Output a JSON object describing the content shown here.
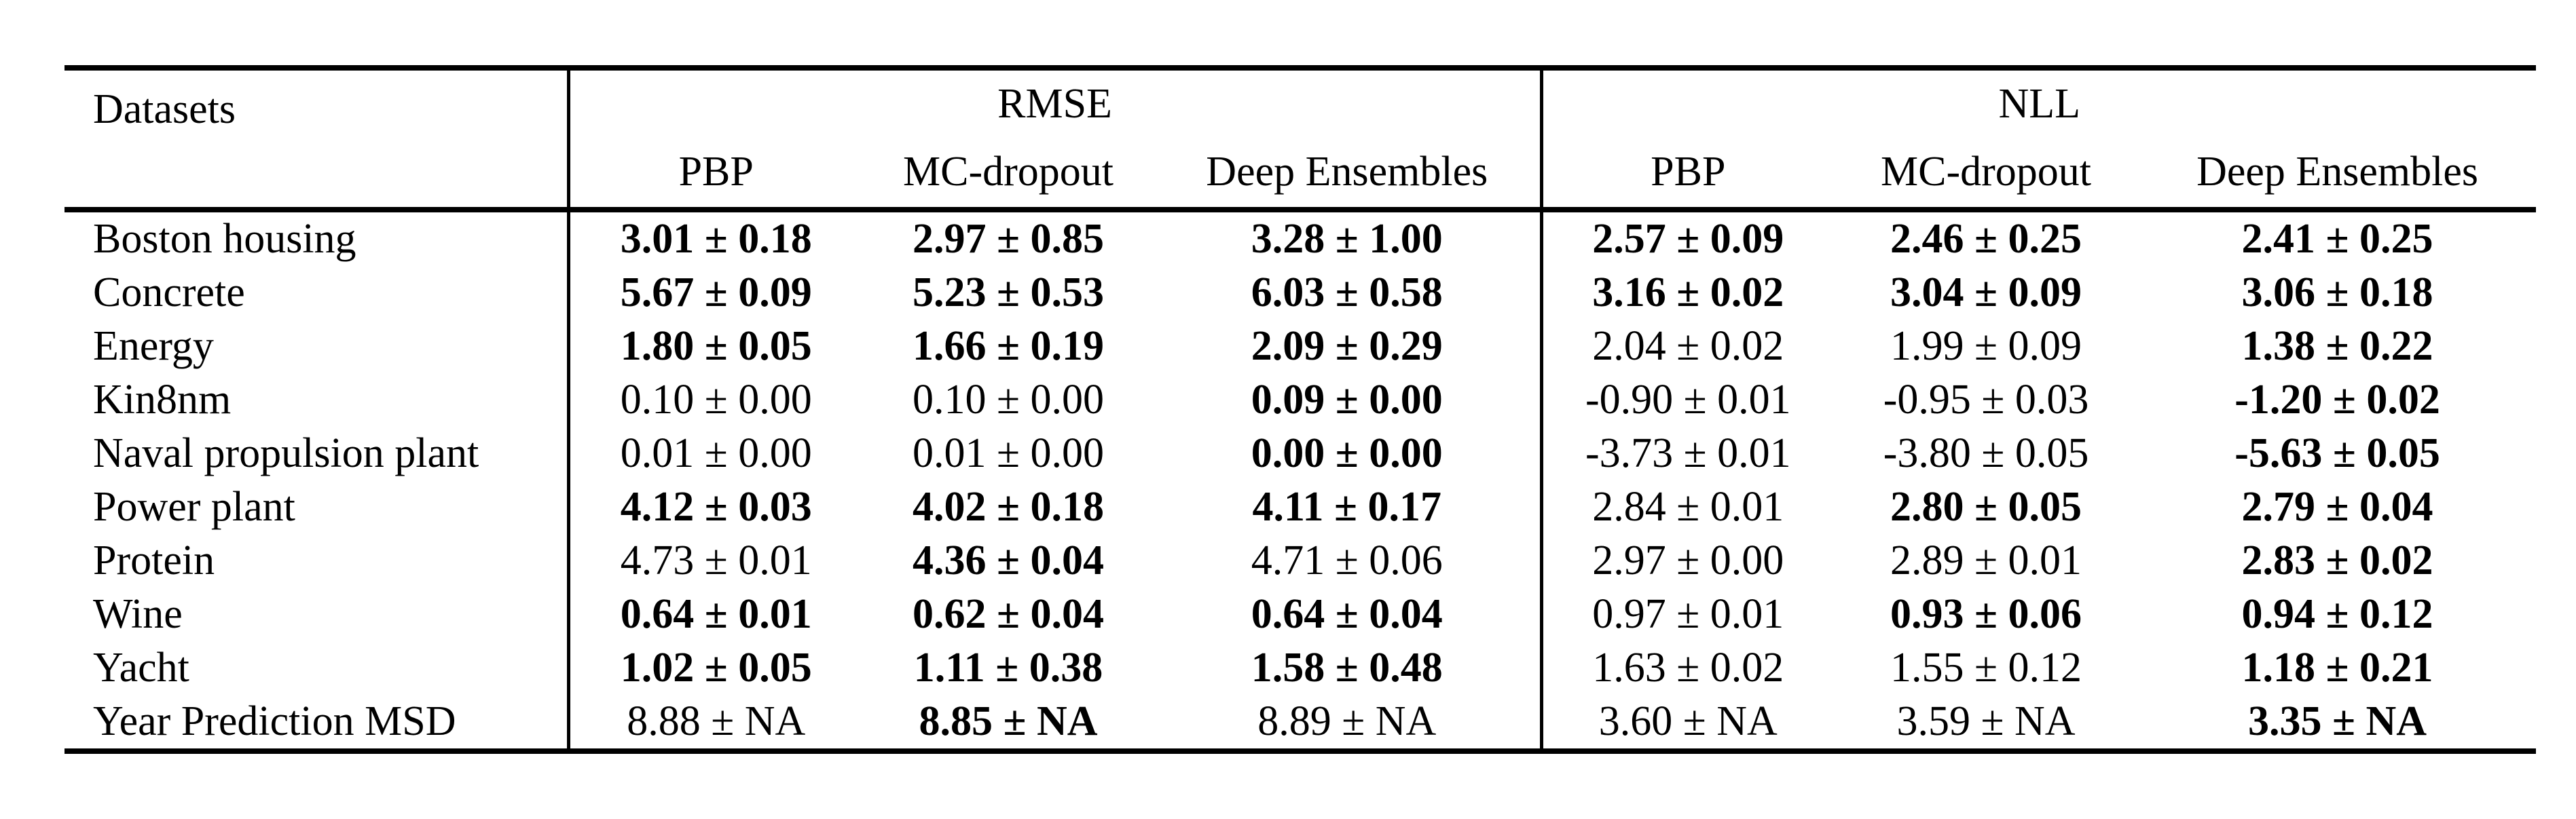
{
  "colors": {
    "text": "#000000",
    "background": "#ffffff",
    "rule": "#000000"
  },
  "header": {
    "datasets": "Datasets",
    "groups": [
      {
        "label": "RMSE",
        "methods": [
          "PBP",
          "MC-dropout",
          "Deep Ensembles"
        ]
      },
      {
        "label": "NLL",
        "methods": [
          "PBP",
          "MC-dropout",
          "Deep Ensembles"
        ]
      }
    ]
  },
  "rows": [
    {
      "dataset": "Boston housing",
      "rmse": [
        {
          "value": "3.01 ± 0.18",
          "bold": true
        },
        {
          "value": "2.97 ± 0.85",
          "bold": true
        },
        {
          "value": "3.28 ± 1.00",
          "bold": true
        }
      ],
      "nll": [
        {
          "value": "2.57 ± 0.09",
          "bold": true
        },
        {
          "value": "2.46 ± 0.25",
          "bold": true
        },
        {
          "value": "2.41 ± 0.25",
          "bold": true
        }
      ]
    },
    {
      "dataset": "Concrete",
      "rmse": [
        {
          "value": "5.67 ± 0.09",
          "bold": true
        },
        {
          "value": "5.23 ± 0.53",
          "bold": true
        },
        {
          "value": "6.03 ± 0.58",
          "bold": true
        }
      ],
      "nll": [
        {
          "value": "3.16 ± 0.02",
          "bold": true
        },
        {
          "value": "3.04 ± 0.09",
          "bold": true
        },
        {
          "value": "3.06 ± 0.18",
          "bold": true
        }
      ]
    },
    {
      "dataset": "Energy",
      "rmse": [
        {
          "value": "1.80 ± 0.05",
          "bold": true
        },
        {
          "value": "1.66 ± 0.19",
          "bold": true
        },
        {
          "value": "2.09 ± 0.29",
          "bold": true
        }
      ],
      "nll": [
        {
          "value": "2.04 ± 0.02",
          "bold": false
        },
        {
          "value": "1.99 ± 0.09",
          "bold": false
        },
        {
          "value": "1.38 ± 0.22",
          "bold": true
        }
      ]
    },
    {
      "dataset": "Kin8nm",
      "rmse": [
        {
          "value": "0.10 ± 0.00",
          "bold": false
        },
        {
          "value": "0.10 ± 0.00",
          "bold": false
        },
        {
          "value": "0.09 ± 0.00",
          "bold": true
        }
      ],
      "nll": [
        {
          "value": "-0.90 ± 0.01",
          "bold": false
        },
        {
          "value": "-0.95 ± 0.03",
          "bold": false
        },
        {
          "value": "-1.20 ± 0.02",
          "bold": true
        }
      ]
    },
    {
      "dataset": "Naval propulsion plant",
      "rmse": [
        {
          "value": "0.01 ± 0.00",
          "bold": false
        },
        {
          "value": "0.01 ± 0.00",
          "bold": false
        },
        {
          "value": "0.00 ± 0.00",
          "bold": true
        }
      ],
      "nll": [
        {
          "value": "-3.73 ± 0.01",
          "bold": false
        },
        {
          "value": "-3.80 ± 0.05",
          "bold": false
        },
        {
          "value": "-5.63 ± 0.05",
          "bold": true
        }
      ]
    },
    {
      "dataset": "Power plant",
      "rmse": [
        {
          "value": "4.12 ± 0.03",
          "bold": true
        },
        {
          "value": "4.02 ± 0.18",
          "bold": true
        },
        {
          "value": "4.11 ± 0.17",
          "bold": true
        }
      ],
      "nll": [
        {
          "value": "2.84 ± 0.01",
          "bold": false
        },
        {
          "value": "2.80 ± 0.05",
          "bold": true
        },
        {
          "value": "2.79 ± 0.04",
          "bold": true
        }
      ]
    },
    {
      "dataset": "Protein",
      "rmse": [
        {
          "value": "4.73 ± 0.01",
          "bold": false
        },
        {
          "value": "4.36 ± 0.04",
          "bold": true
        },
        {
          "value": "4.71 ± 0.06",
          "bold": false
        }
      ],
      "nll": [
        {
          "value": "2.97 ± 0.00",
          "bold": false
        },
        {
          "value": "2.89 ± 0.01",
          "bold": false
        },
        {
          "value": "2.83 ± 0.02",
          "bold": true
        }
      ]
    },
    {
      "dataset": "Wine",
      "rmse": [
        {
          "value": "0.64 ± 0.01",
          "bold": true
        },
        {
          "value": "0.62 ± 0.04",
          "bold": true
        },
        {
          "value": "0.64 ± 0.04",
          "bold": true
        }
      ],
      "nll": [
        {
          "value": "0.97 ± 0.01",
          "bold": false
        },
        {
          "value": "0.93 ± 0.06",
          "bold": true
        },
        {
          "value": "0.94 ± 0.12",
          "bold": true
        }
      ]
    },
    {
      "dataset": "Yacht",
      "rmse": [
        {
          "value": "1.02 ± 0.05",
          "bold": true
        },
        {
          "value": "1.11 ± 0.38",
          "bold": true
        },
        {
          "value": "1.58 ± 0.48",
          "bold": true
        }
      ],
      "nll": [
        {
          "value": "1.63 ± 0.02",
          "bold": false
        },
        {
          "value": "1.55 ± 0.12",
          "bold": false
        },
        {
          "value": "1.18 ± 0.21",
          "bold": true
        }
      ]
    },
    {
      "dataset": "Year Prediction MSD",
      "rmse": [
        {
          "value": "8.88 ± NA",
          "bold": false
        },
        {
          "value": "8.85 ± NA",
          "bold": true
        },
        {
          "value": "8.89 ± NA",
          "bold": false
        }
      ],
      "nll": [
        {
          "value": "3.60 ± NA",
          "bold": false
        },
        {
          "value": "3.59 ± NA",
          "bold": false
        },
        {
          "value": "3.35 ± NA",
          "bold": true
        }
      ]
    }
  ]
}
